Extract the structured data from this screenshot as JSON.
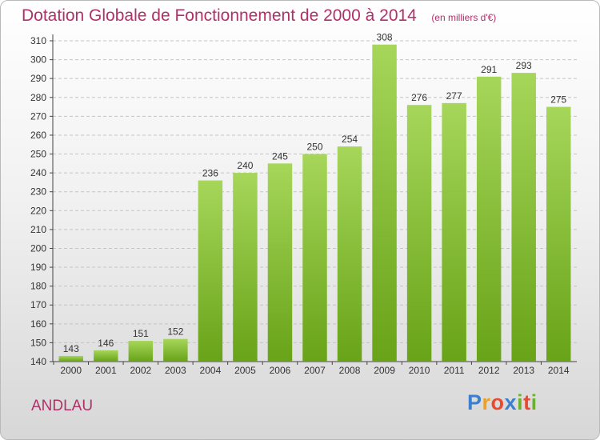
{
  "chart_data": {
    "type": "bar",
    "title": "Dotation Globale de Fonctionnement de 2000 à 2014",
    "subtitle": "(en milliers d'€)",
    "categories": [
      "2000",
      "2001",
      "2002",
      "2003",
      "2004",
      "2005",
      "2006",
      "2007",
      "2008",
      "2009",
      "2010",
      "2011",
      "2012",
      "2013",
      "2014"
    ],
    "values": [
      143,
      146,
      151,
      152,
      236,
      240,
      245,
      250,
      254,
      308,
      276,
      277,
      291,
      293,
      275
    ],
    "ylim": [
      140,
      310
    ],
    "yticks": [
      140,
      150,
      160,
      170,
      180,
      190,
      200,
      210,
      220,
      230,
      240,
      250,
      260,
      270,
      280,
      290,
      300,
      310
    ],
    "grid": true,
    "colors": {
      "bar_light": "#a6d65a",
      "bar_dark": "#68a318",
      "title": "#b0306a"
    }
  },
  "place": "ANDLAU",
  "logo": {
    "letters": [
      "P",
      "r",
      "o",
      "x",
      "i",
      "t",
      "i"
    ],
    "colors": [
      "#3a7fd0",
      "#f0a020",
      "#e84a30",
      "#3a7fd0",
      "#6cb12e",
      "#e84a30",
      "#6cb12e"
    ]
  }
}
